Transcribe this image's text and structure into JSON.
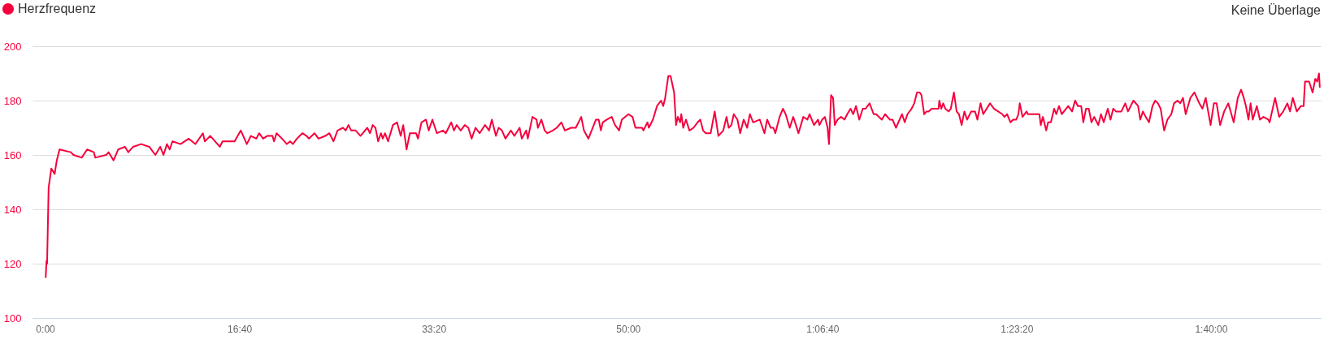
{
  "chart_data": {
    "type": "line",
    "annotations": [
      "Keine Überlage"
    ],
    "x": [
      3,
      7,
      10,
      18,
      32,
      49,
      60,
      74,
      132,
      146,
      188,
      216,
      251,
      258,
      314,
      327,
      352,
      376,
      411,
      428,
      453,
      494,
      536,
      567,
      592,
      609,
      627,
      641,
      655,
      697,
      739,
      773,
      812,
      822,
      850,
      899,
      913,
      975,
      1007,
      1038,
      1059,
      1087,
      1101,
      1122,
      1143,
      1170,
      1178,
      1191,
      1219,
      1244,
      1261,
      1275,
      1296,
      1324,
      1345,
      1358,
      1386,
      1407,
      1442,
      1463,
      1484,
      1505,
      1533,
      1547,
      1561,
      1575,
      1598,
      1623,
      1658,
      1672,
      1686,
      1700,
      1714,
      1728,
      1738,
      1749,
      1765,
      1790,
      1811,
      1830,
      1843,
      1860,
      1877,
      1909,
      1919,
      1937,
      1960,
      1974,
      1993,
      2016,
      2048,
      2062,
      2090,
      2104,
      2118,
      2139,
      2160,
      2178,
      2195,
      2215,
      2236,
      2264,
      2285,
      2299,
      2320,
      2334,
      2351,
      2369,
      2397,
      2415,
      2442,
      2453,
      2476,
      2484,
      2508,
      2529,
      2536,
      2554,
      2571,
      2585,
      2613,
      2633,
      2657,
      2675,
      2707,
      2731,
      2759,
      2773,
      2796,
      2835,
      2849,
      2860,
      2870,
      2891,
      2916,
      2933,
      2954,
      2968,
      3002,
      3023,
      3038,
      3072,
      3079,
      3100,
      3107,
      3128,
      3149,
      3170,
      3181,
      3191,
      3207,
      3219,
      3237,
      3247,
      3256,
      3268,
      3274,
      3284,
      3298,
      3316,
      3337,
      3358,
      3372,
      3386,
      3400,
      3425,
      3446,
      3465,
      3490,
      3507,
      3518,
      3532,
      3544,
      3563,
      3577,
      3595,
      3613,
      3627,
      3644,
      3678,
      3702,
      3716,
      3734,
      3748,
      3758,
      3780,
      3797,
      3811,
      3832,
      3850,
      3864,
      3877,
      3902,
      3923,
      3934,
      3957,
      3978,
      3985,
      3999,
      4013,
      4027,
      4034,
      4045,
      4055,
      4064,
      4078,
      4096,
      4114,
      4128,
      4145,
      4159,
      4173,
      4190,
      4208,
      4222,
      4243,
      4264,
      4277,
      4306,
      4323,
      4347,
      4361,
      4379,
      4410,
      4424,
      4438,
      4459,
      4473,
      4487,
      4501,
      4510,
      4524,
      4536,
      4547,
      4563,
      4598,
      4602,
      4612,
      4622,
      4633,
      4650,
      4661,
      4677,
      4691,
      4703,
      4717,
      4731,
      4745,
      4766,
      4786,
      4798,
      4814,
      4828,
      4863,
      4884,
      4905,
      4926,
      4937,
      4951,
      4968,
      4982,
      4998,
      5009,
      5016,
      5030,
      5051,
      5058,
      5086,
      5117,
      5124,
      5135,
      5152,
      5162,
      5176,
      5193,
      5204,
      5218,
      5232,
      5266,
      5285,
      5301,
      5315,
      5332,
      5343,
      5357,
      5371,
      5385,
      5399,
      5406,
      5420,
      5434,
      5448,
      5469,
      5483,
      5497,
      5511,
      5539,
      5559,
      5573,
      5601,
      5625,
      5636,
      5650,
      5664,
      5681,
      5699,
      5713,
      5727,
      5741,
      5759,
      5776,
      5796,
      5810,
      5828,
      5842,
      5856,
      5870,
      5894,
      5915,
      5940,
      5956,
      5973,
      5998,
      6015,
      6029,
      6047,
      6068,
      6089,
      6117,
      6138,
      6155,
      6169,
      6180,
      6193,
      6204,
      6215,
      6236,
      6252,
      6270,
      6295,
      6302,
      6330,
      6351,
      6372,
      6393,
      6407,
      6421,
      6442,
      6463,
      6477,
      6484,
      6505,
      6523,
      6537,
      6547,
      6556,
      6560
    ],
    "series": [
      {
        "name": "Herzfrequenz",
        "color": "#f5003d",
        "values": [
          115,
          121,
          120,
          148,
          155,
          153,
          158,
          162,
          161,
          160,
          159,
          162,
          161,
          159,
          160,
          161,
          158,
          162,
          163,
          161,
          163,
          164,
          163,
          160,
          163,
          160,
          164,
          162,
          165,
          164,
          166,
          164,
          168,
          165,
          167,
          163,
          165,
          165,
          169,
          164,
          167,
          166,
          168,
          166,
          167,
          167,
          165,
          168,
          166,
          164,
          165,
          164,
          166,
          168,
          167,
          166,
          168,
          166,
          167,
          168,
          165,
          169,
          170,
          169,
          171,
          169,
          169,
          167,
          170,
          168,
          171,
          170,
          165,
          168,
          166,
          168,
          165,
          171,
          172,
          167,
          171,
          162,
          168,
          168,
          166,
          172,
          173,
          169,
          173,
          168,
          169,
          168,
          172,
          169,
          171,
          169,
          171,
          170,
          166,
          170,
          168,
          171,
          169,
          173,
          167,
          170,
          169,
          166,
          169,
          167,
          170,
          166,
          169,
          166,
          174,
          173,
          170,
          173,
          169,
          168,
          169,
          170,
          172,
          169,
          170,
          170,
          174,
          169,
          166,
          173,
          173,
          169,
          172,
          173,
          174,
          171,
          169,
          173,
          175,
          174,
          170,
          170,
          169,
          172,
          170,
          173,
          178,
          180,
          178,
          181,
          189,
          189,
          183,
          171,
          174,
          172,
          175,
          170,
          173,
          169,
          170,
          172,
          173,
          169,
          168,
          168,
          176,
          167,
          169,
          174,
          170,
          171,
          175,
          173,
          168,
          173,
          170,
          175,
          172,
          173,
          168,
          173,
          170,
          170,
          168,
          174,
          177,
          175,
          170,
          174,
          171,
          168,
          174,
          173,
          175,
          171,
          173,
          171,
          173,
          174,
          170,
          164,
          182,
          181,
          171,
          173,
          174,
          173,
          175,
          177,
          175,
          178,
          173,
          177,
          177,
          179,
          175,
          175,
          173,
          175,
          173,
          173,
          170,
          175,
          172,
          175,
          177,
          179,
          183,
          183,
          182,
          175,
          176,
          176,
          177,
          177,
          180,
          177,
          179,
          177,
          176,
          177,
          183,
          176,
          175,
          171,
          176,
          173,
          176,
          176,
          173,
          179,
          175,
          179,
          177,
          176,
          175,
          174,
          175,
          172,
          173,
          173,
          175,
          179,
          174,
          176,
          175,
          175,
          175,
          171,
          174,
          169,
          172,
          172,
          177,
          175,
          178,
          175,
          178,
          176,
          180,
          178,
          178,
          172,
          177,
          177,
          172,
          174,
          173,
          171,
          175,
          172,
          177,
          173,
          177,
          176,
          176,
          179,
          176,
          180,
          178,
          173,
          176,
          174,
          172,
          178,
          180,
          179,
          177,
          169,
          173,
          175,
          179,
          180,
          179,
          181,
          175,
          181,
          183,
          179,
          177,
          181,
          171,
          179,
          179,
          171,
          176,
          179,
          172,
          181,
          184,
          181,
          178,
          173,
          179,
          173,
          178,
          173,
          174,
          173,
          172,
          181,
          174,
          176,
          179,
          176,
          181,
          176,
          178,
          178,
          187,
          187,
          183,
          188,
          187,
          190,
          185
        ]
      }
    ],
    "xlim": [
      -65,
      6565
    ],
    "xticks": [
      {
        "value": 0,
        "label": "0:00"
      },
      {
        "value": 1000,
        "label": "16:40"
      },
      {
        "value": 2000,
        "label": "33:20"
      },
      {
        "value": 3000,
        "label": "50:00"
      },
      {
        "value": 4000,
        "label": "1:06:40"
      },
      {
        "value": 5000,
        "label": "1:23:20"
      },
      {
        "value": 6000,
        "label": "1:40:00"
      }
    ],
    "ylim": [
      100,
      200
    ],
    "yticks": [
      100,
      120,
      140,
      160,
      180,
      200
    ],
    "grid": "y",
    "legend": "top left"
  }
}
